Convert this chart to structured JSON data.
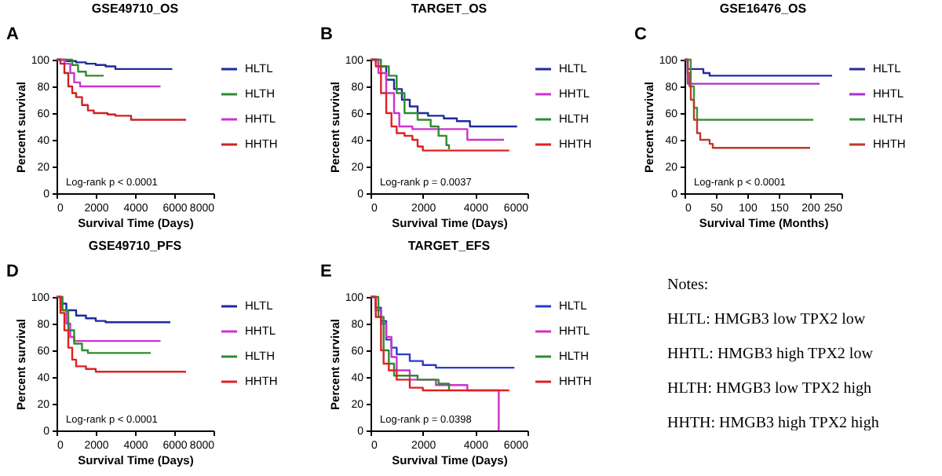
{
  "chart_data": [
    {
      "type": "step",
      "title": "GSE49710_OS",
      "xlabel": "Survival Time (Days)",
      "ylabel": "Percent survival",
      "annotations": [
        "A",
        "Log-rank p < 0.0001"
      ],
      "xlim": [
        0,
        8000
      ],
      "xticks": [
        0,
        2000,
        4000,
        6000,
        8000
      ],
      "ylim": [
        0,
        100
      ],
      "yticks": [
        0,
        20,
        40,
        60,
        80,
        100
      ],
      "legend": "right",
      "series": [
        {
          "name": "HLTL",
          "color": "#1f2a9c",
          "x": [
            0,
            500,
            1000,
            1500,
            2000,
            2500,
            3000,
            5900
          ],
          "values": [
            100,
            99,
            98,
            97,
            96,
            95,
            93,
            93
          ]
        },
        {
          "name": "HLTH",
          "color": "#2e8b2e",
          "x": [
            0,
            800,
            1100,
            1500,
            2400
          ],
          "values": [
            100,
            96,
            91,
            88,
            88
          ]
        },
        {
          "name": "HHTL",
          "color": "#cc33cc",
          "x": [
            0,
            400,
            700,
            900,
            1200,
            5300
          ],
          "values": [
            100,
            97,
            90,
            83,
            80,
            80
          ]
        },
        {
          "name": "HHTH",
          "color": "#cc2222",
          "x": [
            0,
            200,
            400,
            600,
            800,
            1000,
            1300,
            1600,
            1900,
            2600,
            3000,
            3800,
            6600
          ],
          "values": [
            100,
            97,
            90,
            80,
            75,
            72,
            66,
            62,
            60,
            59,
            58,
            55,
            55
          ]
        }
      ]
    },
    {
      "type": "step",
      "title": "TARGET_OS",
      "xlabel": "Survival Time (Days)",
      "ylabel": "Percent survival",
      "annotations": [
        "B",
        "Log-rank p = 0.0037"
      ],
      "xlim": [
        0,
        6000
      ],
      "xticks": [
        0,
        2000,
        4000,
        6000
      ],
      "ylim": [
        0,
        100
      ],
      "yticks": [
        0,
        20,
        40,
        60,
        80,
        100
      ],
      "legend": "right",
      "series": [
        {
          "name": "HLTL",
          "color": "#1f2a9c",
          "x": [
            0,
            300,
            600,
            900,
            1200,
            1500,
            1800,
            2200,
            2800,
            3300,
            3800,
            5600
          ],
          "values": [
            100,
            95,
            85,
            78,
            70,
            65,
            60,
            58,
            56,
            54,
            50,
            50
          ]
        },
        {
          "name": "HHTL",
          "color": "#cc33cc",
          "x": [
            0,
            300,
            600,
            900,
            1100,
            1600,
            3700,
            5100
          ],
          "values": [
            100,
            90,
            75,
            60,
            50,
            48,
            40,
            40
          ]
        },
        {
          "name": "HLTH",
          "color": "#2e8b2e",
          "x": [
            0,
            400,
            700,
            1000,
            1300,
            1800,
            2300,
            2600,
            2900,
            3000
          ],
          "values": [
            100,
            95,
            88,
            75,
            60,
            55,
            50,
            43,
            36,
            33
          ]
        },
        {
          "name": "HHTH",
          "color": "#dd2222",
          "x": [
            0,
            200,
            400,
            600,
            800,
            1000,
            1300,
            1600,
            1800,
            2000,
            5300
          ],
          "values": [
            100,
            95,
            75,
            60,
            50,
            45,
            43,
            40,
            35,
            32,
            32
          ]
        }
      ]
    },
    {
      "type": "step",
      "title": "GSE16476_OS",
      "xlabel": "Survival Time (Months)",
      "ylabel": "Percent survival",
      "annotations": [
        "C",
        "Log-rank p < 0.0001"
      ],
      "xlim": [
        0,
        250
      ],
      "xticks": [
        0,
        50,
        100,
        150,
        200,
        250
      ],
      "ylim": [
        0,
        100
      ],
      "yticks": [
        0,
        20,
        40,
        60,
        80,
        100
      ],
      "legend": "right",
      "series": [
        {
          "name": "HLTL",
          "color": "#2a2aa0",
          "x": [
            0,
            5,
            25,
            30,
            40,
            235
          ],
          "values": [
            100,
            93,
            93,
            90,
            88,
            88
          ]
        },
        {
          "name": "HHTL",
          "color": "#aa33cc",
          "x": [
            0,
            5,
            100,
            215
          ],
          "values": [
            100,
            82,
            82,
            82
          ]
        },
        {
          "name": "HLTH",
          "color": "#3f8f3f",
          "x": [
            0,
            10,
            15,
            20,
            205
          ],
          "values": [
            100,
            80,
            64,
            55,
            55
          ]
        },
        {
          "name": "HHTH",
          "color": "#c0392b",
          "x": [
            0,
            5,
            8,
            10,
            15,
            20,
            25,
            40,
            45,
            200
          ],
          "values": [
            100,
            90,
            80,
            70,
            55,
            45,
            40,
            37,
            34,
            34
          ]
        }
      ]
    },
    {
      "type": "step",
      "title": "GSE49710_PFS",
      "xlabel": "Survival Time (Days)",
      "ylabel": "Percent survival",
      "annotations": [
        "D",
        "Log-rank p < 0.0001"
      ],
      "xlim": [
        0,
        8000
      ],
      "xticks": [
        0,
        2000,
        4000,
        6000,
        8000
      ],
      "ylim": [
        0,
        100
      ],
      "yticks": [
        0,
        20,
        40,
        60,
        80,
        100
      ],
      "legend": "right",
      "series": [
        {
          "name": "HLTL",
          "color": "#1f2a9c",
          "x": [
            0,
            200,
            500,
            1000,
            1500,
            2000,
            2500,
            5800
          ],
          "values": [
            100,
            95,
            90,
            86,
            84,
            82,
            81,
            81
          ]
        },
        {
          "name": "HHTL",
          "color": "#cc33cc",
          "x": [
            0,
            300,
            500,
            700,
            900,
            5300
          ],
          "values": [
            100,
            90,
            80,
            70,
            67,
            67
          ]
        },
        {
          "name": "HLTH",
          "color": "#2e8b2e",
          "x": [
            0,
            300,
            600,
            900,
            1300,
            1600,
            4800
          ],
          "values": [
            100,
            90,
            75,
            65,
            60,
            58,
            58
          ]
        },
        {
          "name": "HHTH",
          "color": "#dd2222",
          "x": [
            0,
            200,
            400,
            600,
            800,
            1000,
            1500,
            2000,
            6600
          ],
          "values": [
            100,
            88,
            75,
            62,
            53,
            48,
            46,
            44,
            44
          ]
        }
      ]
    },
    {
      "type": "step",
      "title": "TARGET_EFS",
      "xlabel": "Survival Time (Days)",
      "ylabel": "Percent survival",
      "annotations": [
        "E",
        "Log-rank p = 0.0398"
      ],
      "xlim": [
        0,
        6000
      ],
      "xticks": [
        0,
        2000,
        4000,
        6000
      ],
      "ylim": [
        0,
        100
      ],
      "yticks": [
        0,
        20,
        40,
        60,
        80,
        100
      ],
      "legend": "right",
      "series": [
        {
          "name": "HLTL",
          "color": "#2a3ad0",
          "x": [
            0,
            200,
            400,
            600,
            800,
            1000,
            1500,
            2000,
            2500,
            5500
          ],
          "values": [
            100,
            92,
            82,
            68,
            62,
            57,
            52,
            49,
            47,
            47
          ]
        },
        {
          "name": "HHTL",
          "color": "#cc33cc",
          "x": [
            0,
            200,
            400,
            600,
            800,
            1000,
            1500,
            2500,
            3700,
            4900,
            4900
          ],
          "values": [
            100,
            90,
            80,
            70,
            55,
            45,
            38,
            34,
            30,
            30,
            0
          ]
        },
        {
          "name": "HLTH",
          "color": "#2e8b2e",
          "x": [
            0,
            300,
            500,
            700,
            900,
            1800,
            2600,
            3000
          ],
          "values": [
            100,
            85,
            60,
            50,
            41,
            38,
            35,
            30
          ]
        },
        {
          "name": "HHTH",
          "color": "#dd2222",
          "x": [
            0,
            200,
            400,
            500,
            700,
            1000,
            1500,
            2000,
            5300
          ],
          "values": [
            100,
            85,
            60,
            50,
            45,
            38,
            32,
            30,
            30
          ]
        }
      ]
    },
    {
      "type": "other",
      "title": "Notes:",
      "annotations": [
        "HLTL: HMGB3 low TPX2 low",
        "HHTL: HMGB3 high TPX2 low",
        "HLTH: HMGB3 low TPX2 high",
        "HHTH: HMGB3 high TPX2 high"
      ]
    }
  ]
}
